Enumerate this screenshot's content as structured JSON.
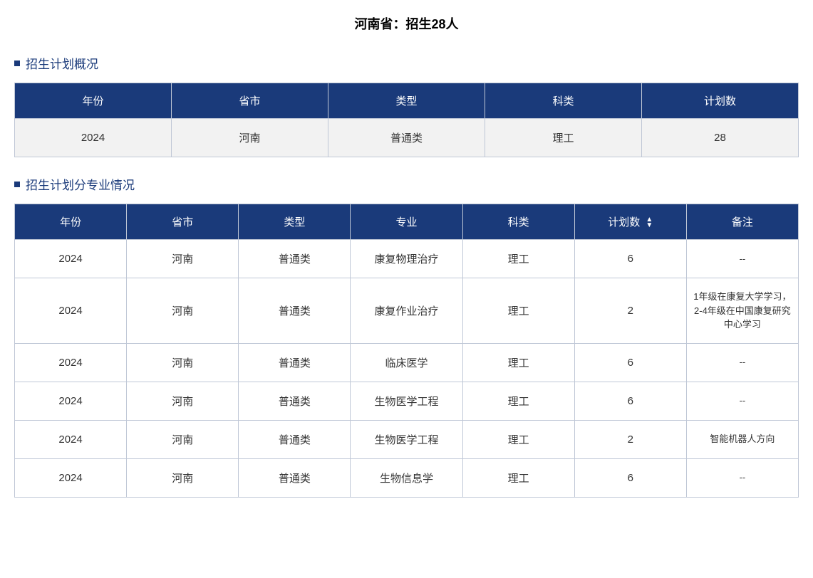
{
  "page_title": "河南省：招生28人",
  "overview_section": {
    "title": "招生计划概况",
    "columns": [
      "年份",
      "省市",
      "类型",
      "科类",
      "计划数"
    ],
    "rows": [
      [
        "2024",
        "河南",
        "普通类",
        "理工",
        "28"
      ]
    ]
  },
  "detail_section": {
    "title": "招生计划分专业情况",
    "columns": [
      "年份",
      "省市",
      "类型",
      "专业",
      "科类",
      "计划数",
      "备注"
    ],
    "sortable_column_index": 5,
    "rows": [
      [
        "2024",
        "河南",
        "普通类",
        "康复物理治疗",
        "理工",
        "6",
        "--"
      ],
      [
        "2024",
        "河南",
        "普通类",
        "康复作业治疗",
        "理工",
        "2",
        "1年级在康复大学学习，2-4年级在中国康复研究中心学习"
      ],
      [
        "2024",
        "河南",
        "普通类",
        "临床医学",
        "理工",
        "6",
        "--"
      ],
      [
        "2024",
        "河南",
        "普通类",
        "生物医学工程",
        "理工",
        "6",
        "--"
      ],
      [
        "2024",
        "河南",
        "普通类",
        "生物医学工程",
        "理工",
        "2",
        "智能机器人方向"
      ],
      [
        "2024",
        "河南",
        "普通类",
        "生物信息学",
        "理工",
        "6",
        "--"
      ]
    ]
  },
  "styling": {
    "header_bg": "#1a3a7a",
    "header_text": "#ffffff",
    "border_color": "#bfc7d6",
    "overview_row_bg": "#f2f2f2",
    "detail_row_bg": "#ffffff",
    "bullet_color": "#1a3a7a",
    "section_title_color": "#1a3a7a"
  }
}
